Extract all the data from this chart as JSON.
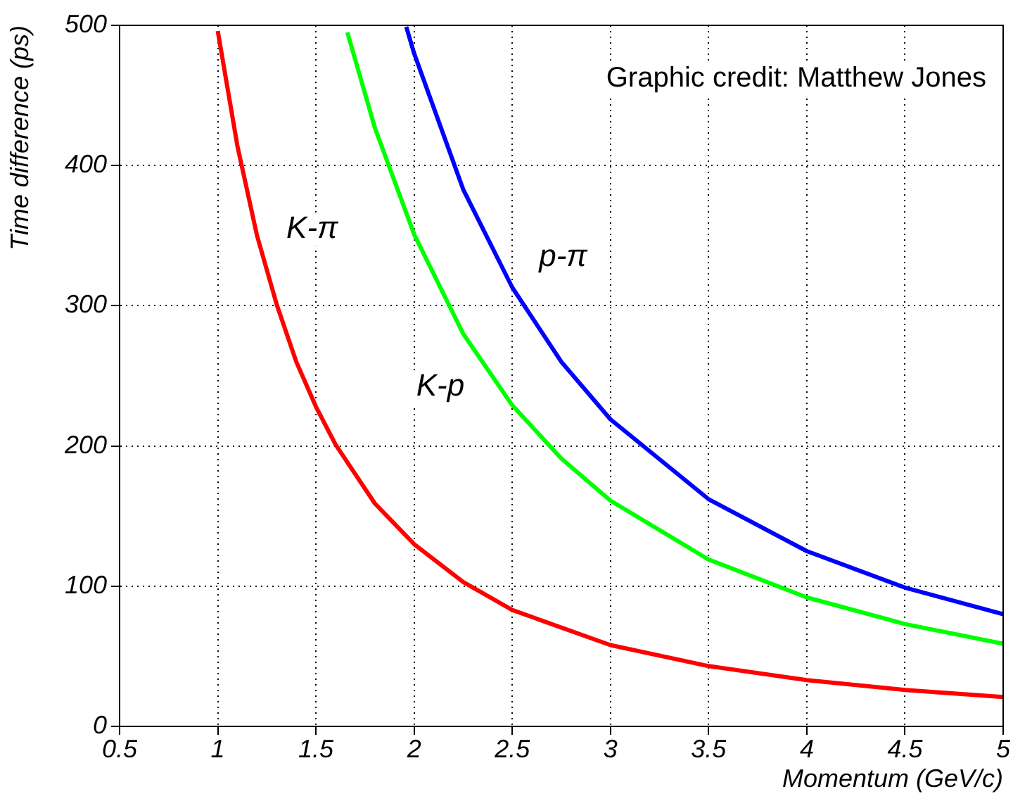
{
  "chart_data": {
    "type": "line",
    "xlabel": "Momentum (GeV/c)",
    "ylabel": "Time difference (ps)",
    "xlim": [
      0.5,
      5
    ],
    "xticks": [
      0.5,
      1,
      1.5,
      2,
      2.5,
      3,
      3.5,
      4,
      4.5,
      5
    ],
    "ylim": [
      0,
      500
    ],
    "yticks": [
      0,
      100,
      200,
      300,
      400,
      500
    ],
    "grid": true,
    "legend": false,
    "marker": "none",
    "line_style": "solid",
    "series": [
      {
        "color": "#ff0000",
        "x": [
          1.0,
          1.1,
          1.2,
          1.3,
          1.4,
          1.5,
          1.6,
          1.8,
          2.0,
          2.25,
          2.5,
          3.0,
          3.5,
          4.0,
          4.5,
          5.0
        ],
        "values": [
          496,
          414,
          350,
          301,
          260,
          228,
          201,
          159,
          130,
          103,
          83,
          58,
          43,
          33,
          26,
          21
        ]
      },
      {
        "color": "#00ff00",
        "x": [
          1.66,
          1.8,
          2.0,
          2.25,
          2.5,
          2.75,
          3.0,
          3.5,
          4.0,
          4.5,
          5.0
        ],
        "values": [
          495,
          427,
          351,
          280,
          229,
          191,
          161,
          119,
          92,
          73,
          59
        ]
      },
      {
        "color": "#0000ff",
        "x": [
          1.96,
          2.0,
          2.25,
          2.5,
          2.75,
          3.0,
          3.5,
          4.0,
          4.5,
          5.0
        ],
        "values": [
          499,
          480,
          383,
          313,
          260,
          219,
          162,
          125,
          99,
          80
        ]
      }
    ],
    "annotations": [
      "Graphic credit: Matthew Jones",
      "K-π",
      "p-π",
      "K-p"
    ]
  }
}
